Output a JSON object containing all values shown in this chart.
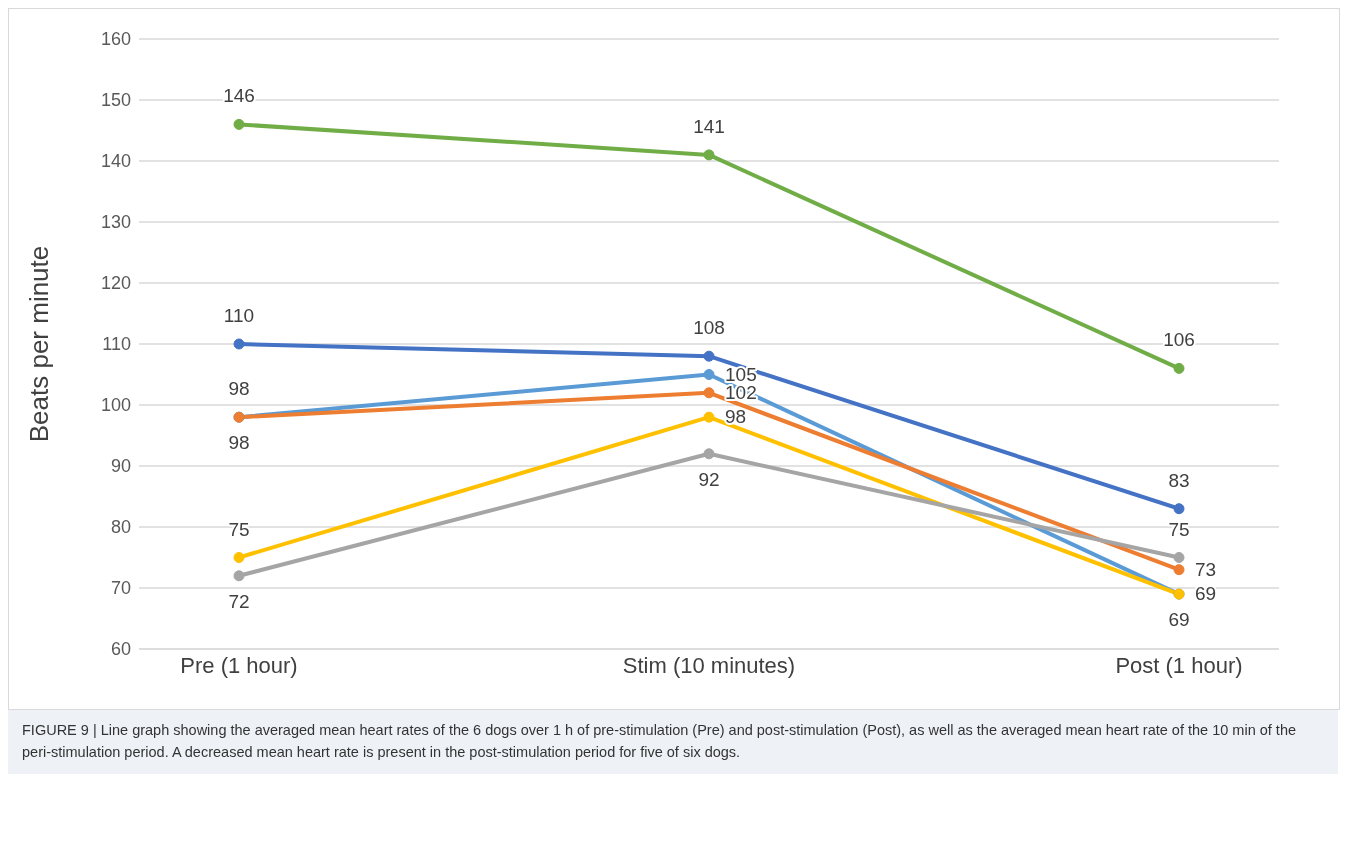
{
  "chart_data": {
    "type": "line",
    "categories": [
      "Pre (1 hour)",
      "Stim (10 minutes)",
      "Post (1 hour)"
    ],
    "series": [
      {
        "color": "#70ad47",
        "values": [
          146,
          141,
          106
        ]
      },
      {
        "color": "#4472c4",
        "values": [
          110,
          108,
          83
        ]
      },
      {
        "color": "#5b9bd5",
        "values": [
          98,
          105,
          69
        ]
      },
      {
        "color": "#ed7d31",
        "values": [
          98,
          102,
          73
        ]
      },
      {
        "color": "#ffc000",
        "values": [
          75,
          98,
          69
        ]
      },
      {
        "color": "#a5a5a5",
        "values": [
          72,
          92,
          75
        ]
      }
    ],
    "ylabel": "Beats per minute",
    "ylim": [
      60,
      160
    ],
    "yticks": [
      60,
      70,
      80,
      90,
      100,
      110,
      120,
      130,
      140,
      150,
      160
    ],
    "grid": "y",
    "marker": "circle",
    "line_style": "solid",
    "data_labels": true,
    "annotations": [
      "FIGURE 9 | Line graph showing the averaged mean heart rates of the 6 dogs over 1 h of pre-stimulation (Pre) and post-stimulation (Post), as well as the averaged mean heart rate of the 10 min of the peri-stimulation period. A decreased mean heart rate is present in the post-stimulation period for five of six dogs."
    ]
  }
}
